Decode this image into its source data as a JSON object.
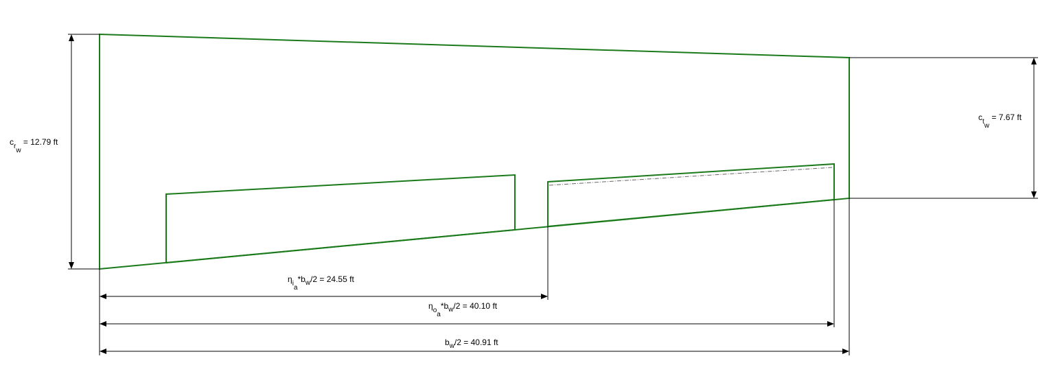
{
  "colors": {
    "outline": "#1a7a1a",
    "dimension": "#000000"
  },
  "labels": {
    "root_chord": {
      "base": "c",
      "sub": "r",
      "subsub": "w",
      "rest": " = 12.79 ft"
    },
    "tip_chord": {
      "base": "c",
      "sub": "t",
      "subsub": "w",
      "rest": " = 7.67 ft"
    },
    "inner_aileron": {
      "base": "η",
      "sub": "i",
      "subsub": "a",
      "mid": "*b",
      "sub2": "w",
      "rest": "/2 = 24.55 ft"
    },
    "outer_aileron": {
      "base": "η",
      "sub": "o",
      "subsub": "a",
      "mid": "*b",
      "sub2": "w",
      "rest": "/2 = 40.10 ft"
    },
    "half_span": {
      "base": "b",
      "sub": "w",
      "rest": "/2 = 40.91 ft"
    }
  }
}
